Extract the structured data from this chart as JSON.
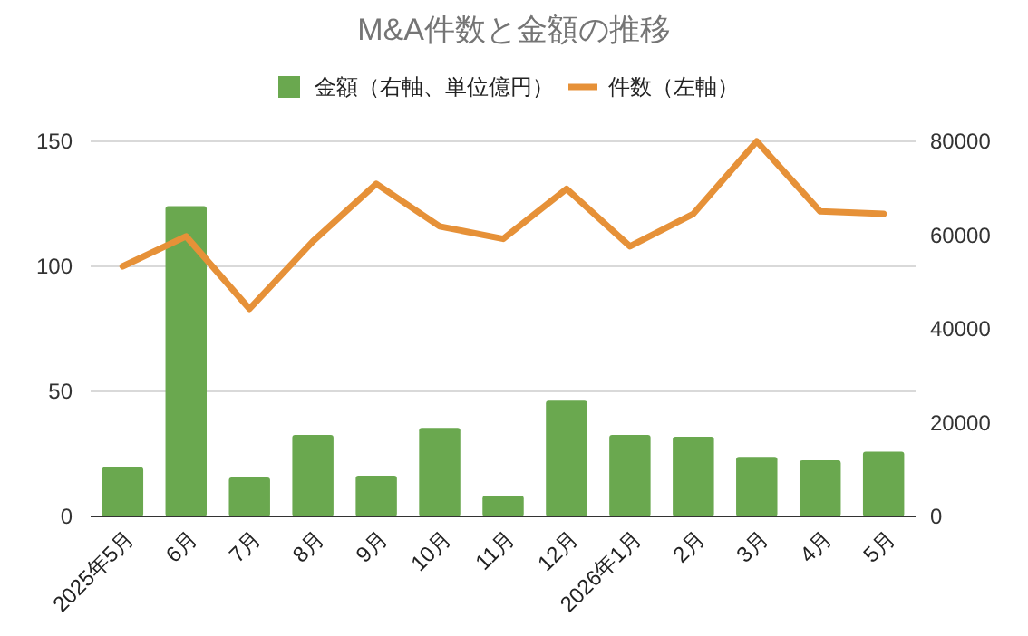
{
  "chart_data": {
    "type": "bar",
    "title": "M&A件数と金額の推移",
    "categories": [
      "2025年5月",
      "6月",
      "7月",
      "8月",
      "9月",
      "10月",
      "11月",
      "12月",
      "2026年1月",
      "2月",
      "3月",
      "4月",
      "5月"
    ],
    "series": [
      {
        "name": "金額（右軸、単位億円）",
        "axis": "y2",
        "color": "#6aa84f",
        "values": [
          10500,
          66200,
          8300,
          17400,
          8700,
          18900,
          4400,
          24700,
          17400,
          17000,
          12700,
          12000,
          13800
        ]
      },
      {
        "name": "件数（左軸）",
        "type": "line",
        "color": "#e69138",
        "values": [
          100,
          112,
          83,
          110,
          133,
          116,
          111,
          131,
          108,
          121,
          150,
          122,
          121
        ]
      }
    ],
    "ylim": [
      0,
      150
    ],
    "yticks": [
      0,
      50,
      100,
      150
    ],
    "y2lim": [
      0,
      80000
    ],
    "y2ticks": [
      0,
      20000,
      40000,
      60000,
      80000
    ],
    "grid": "y",
    "legend": "top"
  }
}
